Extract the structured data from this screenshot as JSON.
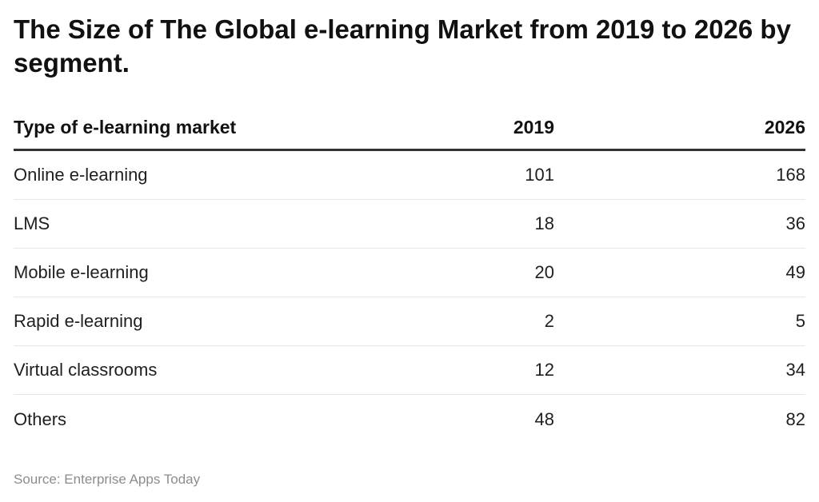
{
  "chart_data": {
    "type": "table",
    "title": "The Size of The Global e-learning Market from 2019 to 2026 by segment.",
    "columns": [
      "Type of e-learning market",
      "2019",
      "2026"
    ],
    "rows": [
      {
        "label": "Online e-learning",
        "v2019": "101",
        "v2026": "168"
      },
      {
        "label": "LMS",
        "v2019": "18",
        "v2026": "36"
      },
      {
        "label": "Mobile e-learning",
        "v2019": "20",
        "v2026": "49"
      },
      {
        "label": "Rapid e-learning",
        "v2019": "2",
        "v2026": "5"
      },
      {
        "label": "Virtual classrooms",
        "v2019": "12",
        "v2026": "34"
      },
      {
        "label": "Others",
        "v2019": "48",
        "v2026": "82"
      }
    ],
    "source": "Source: Enterprise Apps Today"
  }
}
